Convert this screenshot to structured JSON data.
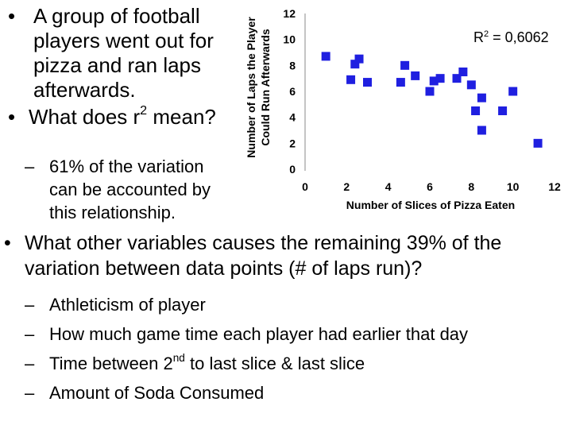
{
  "left_text": {
    "bullet1": "A group of football players went out for pizza and ran laps afterwards.",
    "bullet2_pre": "What does r",
    "bullet2_sup": "2",
    "bullet2_post": " mean?",
    "sub1": "61% of the variation can be accounted by this relationship."
  },
  "lower_text": {
    "bullet3": "What other variables causes the remaining 39% of the variation between data points (# of laps run)?",
    "subs": [
      "Athleticism of player",
      "How much game time each player had earlier that day",
      "Time between 2|nd| to last slice & last slice",
      "Amount of Soda Consumed"
    ]
  },
  "chart_data": {
    "type": "scatter",
    "title": "",
    "xlabel": "Number of Slices of Pizza Eaten",
    "ylabel": "Number of Laps the Player Could Run Afterwards",
    "xlim": [
      0,
      12
    ],
    "ylim": [
      0,
      12
    ],
    "xticks": [
      0,
      2,
      4,
      6,
      8,
      10,
      12
    ],
    "yticks": [
      0,
      2,
      4,
      6,
      8,
      10,
      12
    ],
    "grid": false,
    "marker_color": "#1f1fe0",
    "marker": "square",
    "annotation": {
      "base": "R",
      "sup": "2",
      "rest": " = 0,6062"
    },
    "points": [
      {
        "x": 1,
        "y": 8.7
      },
      {
        "x": 2.2,
        "y": 6.9
      },
      {
        "x": 2.4,
        "y": 8.1
      },
      {
        "x": 2.6,
        "y": 8.5
      },
      {
        "x": 3,
        "y": 6.7
      },
      {
        "x": 4.6,
        "y": 6.7
      },
      {
        "x": 4.8,
        "y": 8
      },
      {
        "x": 5.3,
        "y": 7.2
      },
      {
        "x": 6,
        "y": 6
      },
      {
        "x": 6.2,
        "y": 6.8
      },
      {
        "x": 6.5,
        "y": 7
      },
      {
        "x": 7.3,
        "y": 7
      },
      {
        "x": 7.6,
        "y": 7.5
      },
      {
        "x": 8,
        "y": 6.5
      },
      {
        "x": 8.2,
        "y": 4.5
      },
      {
        "x": 8.5,
        "y": 5.5
      },
      {
        "x": 8.5,
        "y": 3
      },
      {
        "x": 9.5,
        "y": 4.5
      },
      {
        "x": 10,
        "y": 6
      },
      {
        "x": 11.2,
        "y": 2
      }
    ]
  }
}
